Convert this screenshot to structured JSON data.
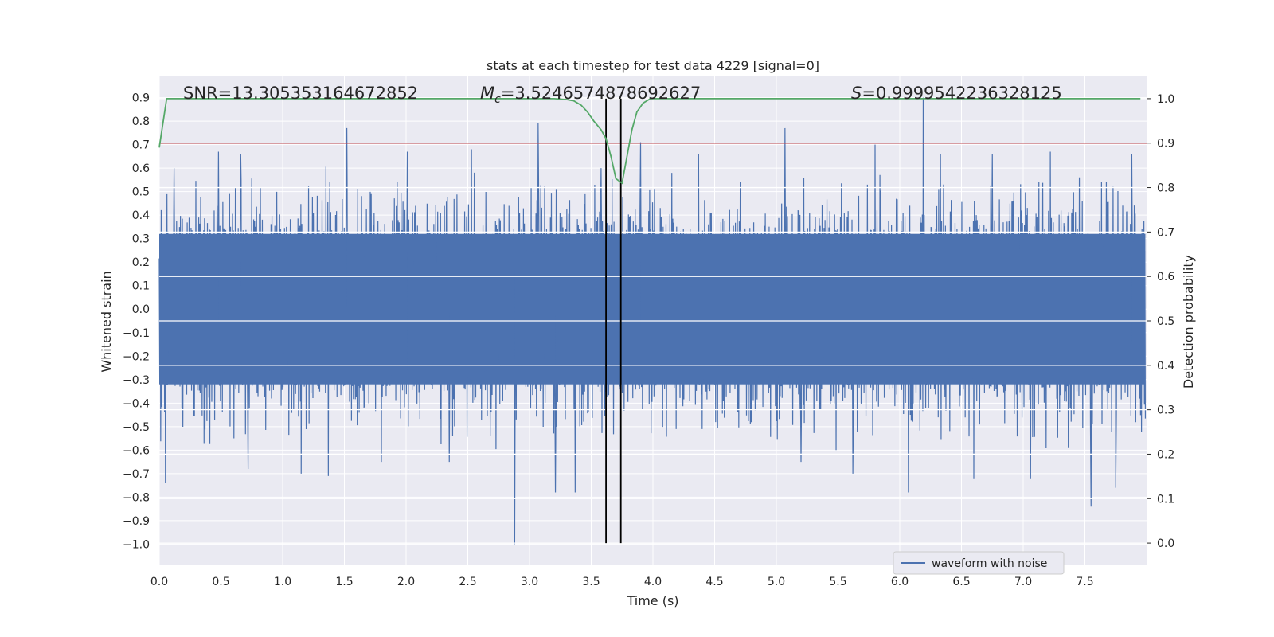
{
  "chart_data": {
    "type": "line",
    "title": "stats at each timestep for test data 4229 [signal=0]",
    "xlabel": "Time (s)",
    "ylabel_left": "Whitened strain",
    "ylabel_right": "Detection probability",
    "xlim": [
      0.0,
      8.0
    ],
    "ylim_left": [
      -1.09,
      0.99
    ],
    "ylim_right": [
      -0.05,
      1.05
    ],
    "x_ticks": [
      "0.0",
      "0.5",
      "1.0",
      "1.5",
      "2.0",
      "2.5",
      "3.0",
      "3.5",
      "4.0",
      "4.5",
      "5.0",
      "5.5",
      "6.0",
      "6.5",
      "7.0",
      "7.5"
    ],
    "y_ticks_left": [
      "0.9",
      "0.8",
      "0.7",
      "0.6",
      "0.5",
      "0.4",
      "0.3",
      "0.2",
      "0.1",
      "0.0",
      "−0.1",
      "−0.2",
      "−0.3",
      "−0.4",
      "−0.5",
      "−0.6",
      "−0.7",
      "−0.8",
      "−0.9",
      "−1.0"
    ],
    "y_ticks_right": [
      "1.0",
      "0.9",
      "0.8",
      "0.7",
      "0.6",
      "0.5",
      "0.4",
      "0.3",
      "0.2",
      "0.1",
      "0.0"
    ],
    "grid": true,
    "legend": {
      "entries": [
        "waveform with noise"
      ],
      "position": "lower-right"
    },
    "annotations": {
      "snr": "SNR=13.305353164672852",
      "mc_prefix": "M",
      "mc_sub": "c",
      "mc_value": "=3.5246574878692627",
      "s_prefix": "S",
      "s_value": "=0.9999542236328125"
    },
    "threshold": {
      "value": 0.9,
      "axis": "right",
      "color": "#c44e52"
    },
    "vlines": [
      3.62,
      3.74
    ],
    "waveform": {
      "name": "waveform with noise",
      "color": "#4c72b0",
      "t_start": 0.0,
      "t_end": 7.99,
      "n_samples": 2048,
      "core_amplitude": 0.32,
      "spikes": [
        {
          "t": 0.05,
          "v": -0.74
        },
        {
          "t": 0.12,
          "v": 0.6
        },
        {
          "t": 0.48,
          "v": 0.67
        },
        {
          "t": 0.72,
          "v": -0.68
        },
        {
          "t": 0.66,
          "v": 0.66
        },
        {
          "t": 1.15,
          "v": -0.7
        },
        {
          "t": 1.37,
          "v": -0.71
        },
        {
          "t": 1.52,
          "v": 0.77
        },
        {
          "t": 1.8,
          "v": -0.65
        },
        {
          "t": 2.01,
          "v": 0.67
        },
        {
          "t": 2.35,
          "v": -0.65
        },
        {
          "t": 2.53,
          "v": 0.68
        },
        {
          "t": 2.88,
          "v": -1.0
        },
        {
          "t": 3.07,
          "v": 0.79
        },
        {
          "t": 3.21,
          "v": -0.78
        },
        {
          "t": 3.37,
          "v": -0.78
        },
        {
          "t": 3.58,
          "v": 0.6
        },
        {
          "t": 3.9,
          "v": 0.71
        },
        {
          "t": 4.37,
          "v": 0.66
        },
        {
          "t": 5.07,
          "v": 0.77
        },
        {
          "t": 5.2,
          "v": -0.65
        },
        {
          "t": 5.8,
          "v": 0.7
        },
        {
          "t": 5.62,
          "v": -0.7
        },
        {
          "t": 6.07,
          "v": -0.78
        },
        {
          "t": 6.19,
          "v": 0.9
        },
        {
          "t": 6.33,
          "v": 0.66
        },
        {
          "t": 6.6,
          "v": -0.72
        },
        {
          "t": 6.75,
          "v": 0.66
        },
        {
          "t": 7.06,
          "v": -0.72
        },
        {
          "t": 7.22,
          "v": 0.67
        },
        {
          "t": 7.55,
          "v": -0.84
        },
        {
          "t": 7.75,
          "v": -0.76
        },
        {
          "t": 7.88,
          "v": 0.66
        }
      ]
    },
    "probability": {
      "name": "detection probability",
      "color": "#55a868",
      "points": [
        [
          0.0,
          0.89
        ],
        [
          0.06,
          1.0
        ],
        [
          3.2,
          1.0
        ],
        [
          3.3,
          0.998
        ],
        [
          3.36,
          0.995
        ],
        [
          3.42,
          0.985
        ],
        [
          3.47,
          0.97
        ],
        [
          3.52,
          0.95
        ],
        [
          3.58,
          0.93
        ],
        [
          3.62,
          0.91
        ],
        [
          3.66,
          0.87
        ],
        [
          3.7,
          0.82
        ],
        [
          3.75,
          0.81
        ],
        [
          3.79,
          0.87
        ],
        [
          3.83,
          0.93
        ],
        [
          3.87,
          0.97
        ],
        [
          3.92,
          0.99
        ],
        [
          3.98,
          1.0
        ],
        [
          7.95,
          1.0
        ]
      ]
    }
  }
}
